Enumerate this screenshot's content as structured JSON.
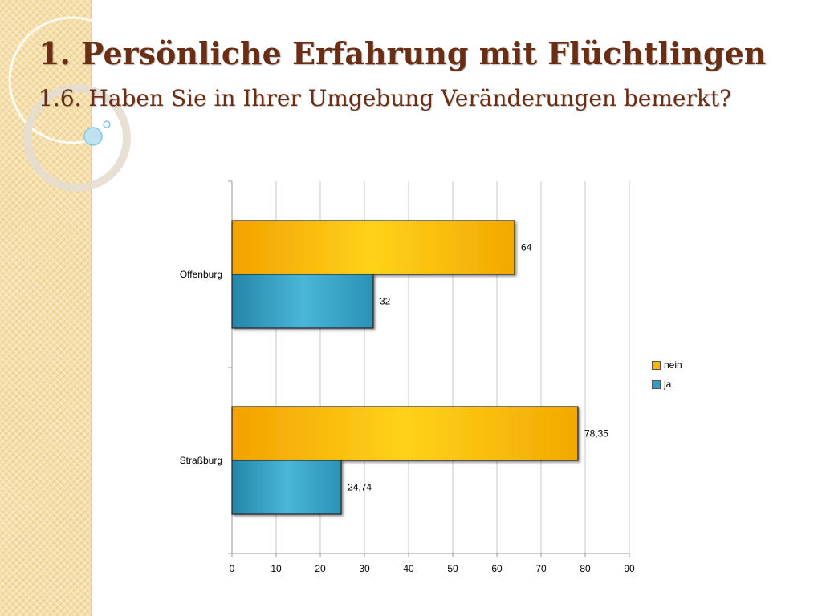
{
  "slide": {
    "title": "1. Persönliche Erfahrung mit Flüchtlingen",
    "subtitle": "1.6. Haben Sie in Ihrer Umgebung Veränderungen bemerkt?"
  },
  "colors": {
    "nein": "#f7b500",
    "ja": "#2f9fc4"
  },
  "chart_data": {
    "type": "bar",
    "orientation": "horizontal",
    "title": "",
    "xlabel": "",
    "ylabel": "",
    "categories": [
      "Offenburg",
      "Straßburg"
    ],
    "series": [
      {
        "name": "nein",
        "values": [
          64,
          78.35
        ],
        "labels": [
          "64",
          "78,35"
        ]
      },
      {
        "name": "ja",
        "values": [
          32,
          24.74
        ],
        "labels": [
          "32",
          "24,74"
        ]
      }
    ],
    "xlim": [
      0,
      90
    ],
    "xticks": [
      "0",
      "10",
      "20",
      "30",
      "40",
      "50",
      "60",
      "70",
      "80",
      "90"
    ],
    "grid": "vertical",
    "legend": "right"
  }
}
